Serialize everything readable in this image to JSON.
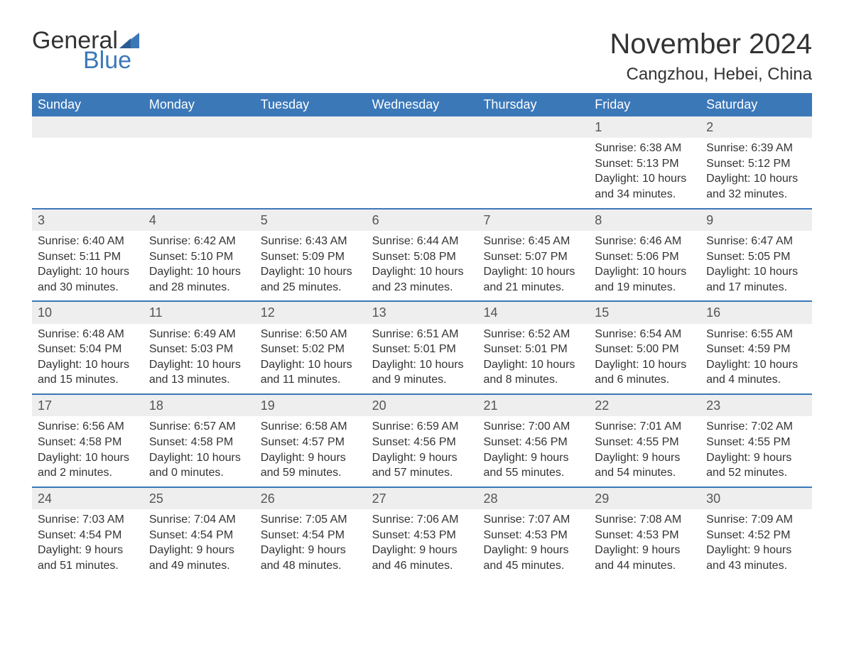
{
  "logo": {
    "text1": "General",
    "text2": "Blue",
    "tri_color": "#3b78b8"
  },
  "title": "November 2024",
  "location": "Cangzhou, Hebei, China",
  "colors": {
    "header_bg": "#3b78b8",
    "header_text": "#ffffff",
    "daynum_bg": "#eeeeee",
    "week_border": "#3b78b8",
    "body_text": "#333333",
    "page_bg": "#ffffff"
  },
  "fonts": {
    "title_pt": 40,
    "location_pt": 24,
    "weekday_pt": 18,
    "daynum_pt": 18,
    "body_pt": 16
  },
  "weekdays": [
    "Sunday",
    "Monday",
    "Tuesday",
    "Wednesday",
    "Thursday",
    "Friday",
    "Saturday"
  ],
  "weeks": [
    [
      {
        "empty": true
      },
      {
        "empty": true
      },
      {
        "empty": true
      },
      {
        "empty": true
      },
      {
        "empty": true
      },
      {
        "num": "1",
        "sunrise": "Sunrise: 6:38 AM",
        "sunset": "Sunset: 5:13 PM",
        "daylight": "Daylight: 10 hours and 34 minutes."
      },
      {
        "num": "2",
        "sunrise": "Sunrise: 6:39 AM",
        "sunset": "Sunset: 5:12 PM",
        "daylight": "Daylight: 10 hours and 32 minutes."
      }
    ],
    [
      {
        "num": "3",
        "sunrise": "Sunrise: 6:40 AM",
        "sunset": "Sunset: 5:11 PM",
        "daylight": "Daylight: 10 hours and 30 minutes."
      },
      {
        "num": "4",
        "sunrise": "Sunrise: 6:42 AM",
        "sunset": "Sunset: 5:10 PM",
        "daylight": "Daylight: 10 hours and 28 minutes."
      },
      {
        "num": "5",
        "sunrise": "Sunrise: 6:43 AM",
        "sunset": "Sunset: 5:09 PM",
        "daylight": "Daylight: 10 hours and 25 minutes."
      },
      {
        "num": "6",
        "sunrise": "Sunrise: 6:44 AM",
        "sunset": "Sunset: 5:08 PM",
        "daylight": "Daylight: 10 hours and 23 minutes."
      },
      {
        "num": "7",
        "sunrise": "Sunrise: 6:45 AM",
        "sunset": "Sunset: 5:07 PM",
        "daylight": "Daylight: 10 hours and 21 minutes."
      },
      {
        "num": "8",
        "sunrise": "Sunrise: 6:46 AM",
        "sunset": "Sunset: 5:06 PM",
        "daylight": "Daylight: 10 hours and 19 minutes."
      },
      {
        "num": "9",
        "sunrise": "Sunrise: 6:47 AM",
        "sunset": "Sunset: 5:05 PM",
        "daylight": "Daylight: 10 hours and 17 minutes."
      }
    ],
    [
      {
        "num": "10",
        "sunrise": "Sunrise: 6:48 AM",
        "sunset": "Sunset: 5:04 PM",
        "daylight": "Daylight: 10 hours and 15 minutes."
      },
      {
        "num": "11",
        "sunrise": "Sunrise: 6:49 AM",
        "sunset": "Sunset: 5:03 PM",
        "daylight": "Daylight: 10 hours and 13 minutes."
      },
      {
        "num": "12",
        "sunrise": "Sunrise: 6:50 AM",
        "sunset": "Sunset: 5:02 PM",
        "daylight": "Daylight: 10 hours and 11 minutes."
      },
      {
        "num": "13",
        "sunrise": "Sunrise: 6:51 AM",
        "sunset": "Sunset: 5:01 PM",
        "daylight": "Daylight: 10 hours and 9 minutes."
      },
      {
        "num": "14",
        "sunrise": "Sunrise: 6:52 AM",
        "sunset": "Sunset: 5:01 PM",
        "daylight": "Daylight: 10 hours and 8 minutes."
      },
      {
        "num": "15",
        "sunrise": "Sunrise: 6:54 AM",
        "sunset": "Sunset: 5:00 PM",
        "daylight": "Daylight: 10 hours and 6 minutes."
      },
      {
        "num": "16",
        "sunrise": "Sunrise: 6:55 AM",
        "sunset": "Sunset: 4:59 PM",
        "daylight": "Daylight: 10 hours and 4 minutes."
      }
    ],
    [
      {
        "num": "17",
        "sunrise": "Sunrise: 6:56 AM",
        "sunset": "Sunset: 4:58 PM",
        "daylight": "Daylight: 10 hours and 2 minutes."
      },
      {
        "num": "18",
        "sunrise": "Sunrise: 6:57 AM",
        "sunset": "Sunset: 4:58 PM",
        "daylight": "Daylight: 10 hours and 0 minutes."
      },
      {
        "num": "19",
        "sunrise": "Sunrise: 6:58 AM",
        "sunset": "Sunset: 4:57 PM",
        "daylight": "Daylight: 9 hours and 59 minutes."
      },
      {
        "num": "20",
        "sunrise": "Sunrise: 6:59 AM",
        "sunset": "Sunset: 4:56 PM",
        "daylight": "Daylight: 9 hours and 57 minutes."
      },
      {
        "num": "21",
        "sunrise": "Sunrise: 7:00 AM",
        "sunset": "Sunset: 4:56 PM",
        "daylight": "Daylight: 9 hours and 55 minutes."
      },
      {
        "num": "22",
        "sunrise": "Sunrise: 7:01 AM",
        "sunset": "Sunset: 4:55 PM",
        "daylight": "Daylight: 9 hours and 54 minutes."
      },
      {
        "num": "23",
        "sunrise": "Sunrise: 7:02 AM",
        "sunset": "Sunset: 4:55 PM",
        "daylight": "Daylight: 9 hours and 52 minutes."
      }
    ],
    [
      {
        "num": "24",
        "sunrise": "Sunrise: 7:03 AM",
        "sunset": "Sunset: 4:54 PM",
        "daylight": "Daylight: 9 hours and 51 minutes."
      },
      {
        "num": "25",
        "sunrise": "Sunrise: 7:04 AM",
        "sunset": "Sunset: 4:54 PM",
        "daylight": "Daylight: 9 hours and 49 minutes."
      },
      {
        "num": "26",
        "sunrise": "Sunrise: 7:05 AM",
        "sunset": "Sunset: 4:54 PM",
        "daylight": "Daylight: 9 hours and 48 minutes."
      },
      {
        "num": "27",
        "sunrise": "Sunrise: 7:06 AM",
        "sunset": "Sunset: 4:53 PM",
        "daylight": "Daylight: 9 hours and 46 minutes."
      },
      {
        "num": "28",
        "sunrise": "Sunrise: 7:07 AM",
        "sunset": "Sunset: 4:53 PM",
        "daylight": "Daylight: 9 hours and 45 minutes."
      },
      {
        "num": "29",
        "sunrise": "Sunrise: 7:08 AM",
        "sunset": "Sunset: 4:53 PM",
        "daylight": "Daylight: 9 hours and 44 minutes."
      },
      {
        "num": "30",
        "sunrise": "Sunrise: 7:09 AM",
        "sunset": "Sunset: 4:52 PM",
        "daylight": "Daylight: 9 hours and 43 minutes."
      }
    ]
  ]
}
